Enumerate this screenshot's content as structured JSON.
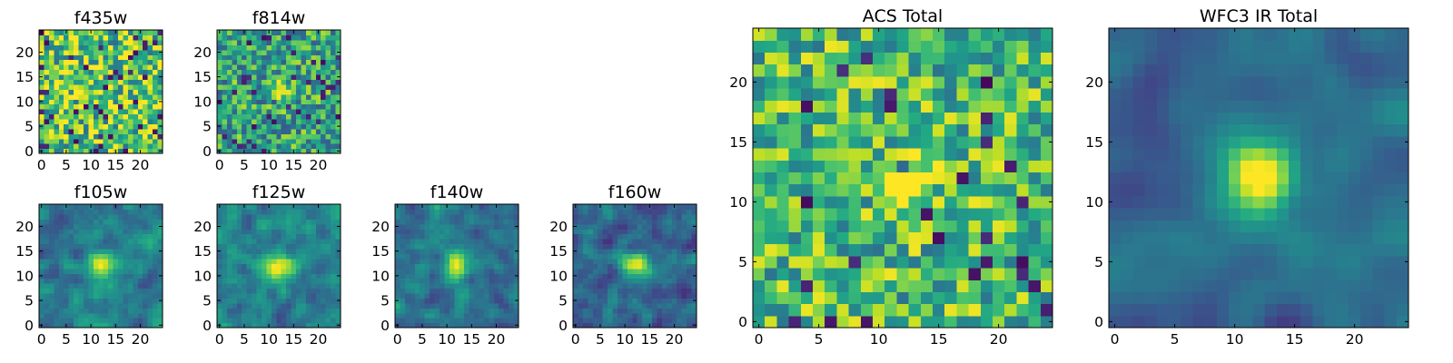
{
  "chart_data": [
    {
      "type": "heatmap",
      "title": "f435w",
      "size": 25,
      "seed": 11,
      "base": 0.72,
      "noise": 0.36,
      "blob_amp": 0.0,
      "blob_sigma": 2.0,
      "blob_center": [
        12,
        12
      ],
      "dark_fraction": 0.07,
      "smooth": 0,
      "xticks": [
        0,
        5,
        10,
        15,
        20
      ],
      "yticks": [
        0,
        5,
        10,
        15,
        20
      ],
      "xlim": [
        -0.5,
        24.5
      ],
      "ylim": [
        -0.5,
        24.5
      ],
      "colormap": "viridis"
    },
    {
      "type": "heatmap",
      "title": "f814w",
      "size": 25,
      "seed": 23,
      "base": 0.58,
      "noise": 0.3,
      "blob_amp": 0.55,
      "blob_sigma": 1.3,
      "blob_center": [
        12,
        12
      ],
      "dark_fraction": 0.05,
      "smooth": 0,
      "xticks": [
        0,
        5,
        10,
        15,
        20
      ],
      "yticks": [
        0,
        5,
        10,
        15,
        20
      ],
      "xlim": [
        -0.5,
        24.5
      ],
      "ylim": [
        -0.5,
        24.5
      ],
      "colormap": "viridis"
    },
    {
      "type": "heatmap",
      "title": "f105w",
      "size": 25,
      "seed": 37,
      "base": 0.42,
      "noise": 0.32,
      "blob_amp": 0.62,
      "blob_sigma": 1.8,
      "blob_center": [
        12,
        12
      ],
      "dark_fraction": 0.04,
      "smooth": 1,
      "xticks": [
        0,
        5,
        10,
        15,
        20
      ],
      "yticks": [
        0,
        5,
        10,
        15,
        20
      ],
      "xlim": [
        -0.5,
        24.5
      ],
      "ylim": [
        -0.5,
        24.5
      ],
      "colormap": "viridis"
    },
    {
      "type": "heatmap",
      "title": "f125w",
      "size": 25,
      "seed": 41,
      "base": 0.45,
      "noise": 0.32,
      "blob_amp": 0.6,
      "blob_sigma": 2.0,
      "blob_center": [
        12,
        12
      ],
      "dark_fraction": 0.04,
      "smooth": 1,
      "xticks": [
        0,
        5,
        10,
        15,
        20
      ],
      "yticks": [
        0,
        5,
        10,
        15,
        20
      ],
      "xlim": [
        -0.5,
        24.5
      ],
      "ylim": [
        -0.5,
        24.5
      ],
      "colormap": "viridis"
    },
    {
      "type": "heatmap",
      "title": "f140w",
      "size": 25,
      "seed": 53,
      "base": 0.4,
      "noise": 0.32,
      "blob_amp": 0.62,
      "blob_sigma": 1.8,
      "blob_center": [
        12,
        12
      ],
      "dark_fraction": 0.04,
      "smooth": 1,
      "xticks": [
        0,
        5,
        10,
        15,
        20
      ],
      "yticks": [
        0,
        5,
        10,
        15,
        20
      ],
      "xlim": [
        -0.5,
        24.5
      ],
      "ylim": [
        -0.5,
        24.5
      ],
      "colormap": "viridis"
    },
    {
      "type": "heatmap",
      "title": "f160w",
      "size": 25,
      "seed": 67,
      "base": 0.36,
      "noise": 0.34,
      "blob_amp": 0.66,
      "blob_sigma": 1.8,
      "blob_center": [
        12,
        12
      ],
      "dark_fraction": 0.05,
      "smooth": 1,
      "xticks": [
        0,
        5,
        10,
        15,
        20
      ],
      "yticks": [
        0,
        5,
        10,
        15,
        20
      ],
      "xlim": [
        -0.5,
        24.5
      ],
      "ylim": [
        -0.5,
        24.5
      ],
      "colormap": "viridis"
    },
    {
      "type": "heatmap",
      "title": "ACS Total",
      "size": 25,
      "seed": 79,
      "base": 0.68,
      "noise": 0.3,
      "blob_amp": 0.4,
      "blob_sigma": 1.3,
      "blob_center": [
        12,
        12
      ],
      "dark_fraction": 0.05,
      "smooth": 0,
      "xticks": [
        0,
        5,
        10,
        15,
        20
      ],
      "yticks": [
        0,
        5,
        10,
        15,
        20
      ],
      "xlim": [
        -0.5,
        24.5
      ],
      "ylim": [
        -0.5,
        24.5
      ],
      "colormap": "viridis"
    },
    {
      "type": "heatmap",
      "title": "WFC3 IR Total",
      "size": 25,
      "seed": 97,
      "base": 0.34,
      "noise": 0.28,
      "blob_amp": 0.72,
      "blob_sigma": 2.2,
      "blob_center": [
        12,
        12
      ],
      "dark_fraction": 0.03,
      "smooth": 2,
      "xticks": [
        0,
        5,
        10,
        15,
        20
      ],
      "yticks": [
        0,
        5,
        10,
        15,
        20
      ],
      "xlim": [
        -0.5,
        24.5
      ],
      "ylim": [
        -0.5,
        24.5
      ],
      "colormap": "viridis"
    }
  ]
}
